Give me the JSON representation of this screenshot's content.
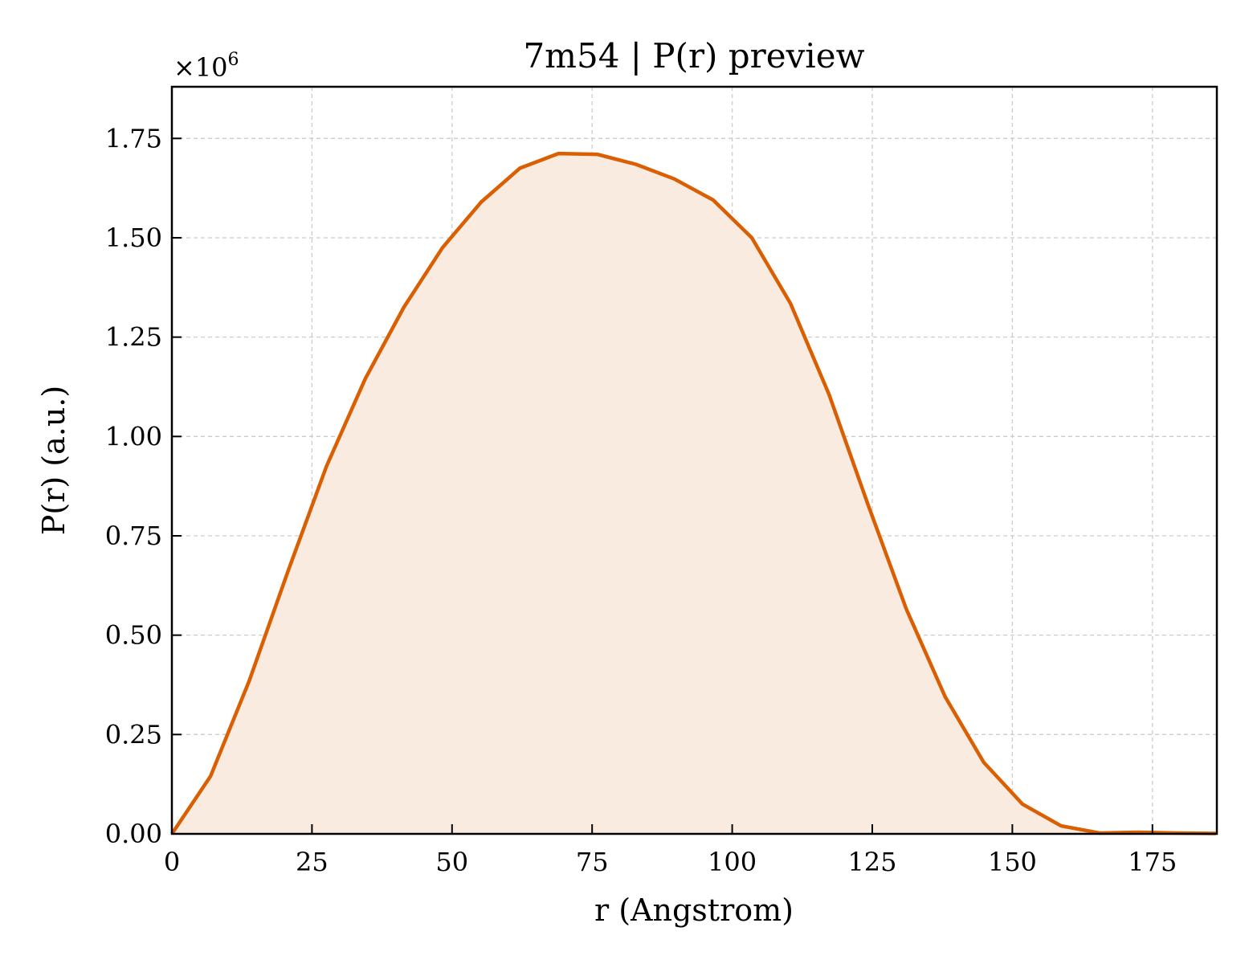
{
  "chart_data": {
    "type": "area",
    "title": "7m54 | P(r) preview",
    "xlabel": "r (Angstrom)",
    "ylabel": "P(r) (a.u.)",
    "y_scale_label": "×10",
    "y_scale_exponent": "6",
    "y_scale": 1000000,
    "xlim": [
      0,
      186.5
    ],
    "ylim": [
      0,
      1880000
    ],
    "xticks": [
      "0",
      "25",
      "50",
      "75",
      "100",
      "125",
      "150",
      "175"
    ],
    "yticks": [
      "0.00",
      "0.25",
      "0.50",
      "0.75",
      "1.00",
      "1.25",
      "1.50",
      "1.75"
    ],
    "grid": true,
    "line_color": "#d95f02",
    "fill_color": "#f9ebe0",
    "series": [
      {
        "x": [
          0,
          6.9,
          13.8,
          20.7,
          27.6,
          34.5,
          41.4,
          48.3,
          55.2,
          62.1,
          69.0,
          75.9,
          82.8,
          89.7,
          96.6,
          103.5,
          110.4,
          117.3,
          124.2,
          131.1,
          138.0,
          144.9,
          151.8,
          158.7,
          165.6,
          172.5,
          179.4,
          186.3
        ],
        "y": [
          0,
          145000,
          385000,
          660000,
          925000,
          1145000,
          1325000,
          1475000,
          1590000,
          1675000,
          1712000,
          1710000,
          1685000,
          1648000,
          1595000,
          1500000,
          1335000,
          1105000,
          830000,
          565000,
          345000,
          180000,
          75000,
          20000,
          2000,
          4000,
          2000,
          1000
        ]
      }
    ]
  }
}
